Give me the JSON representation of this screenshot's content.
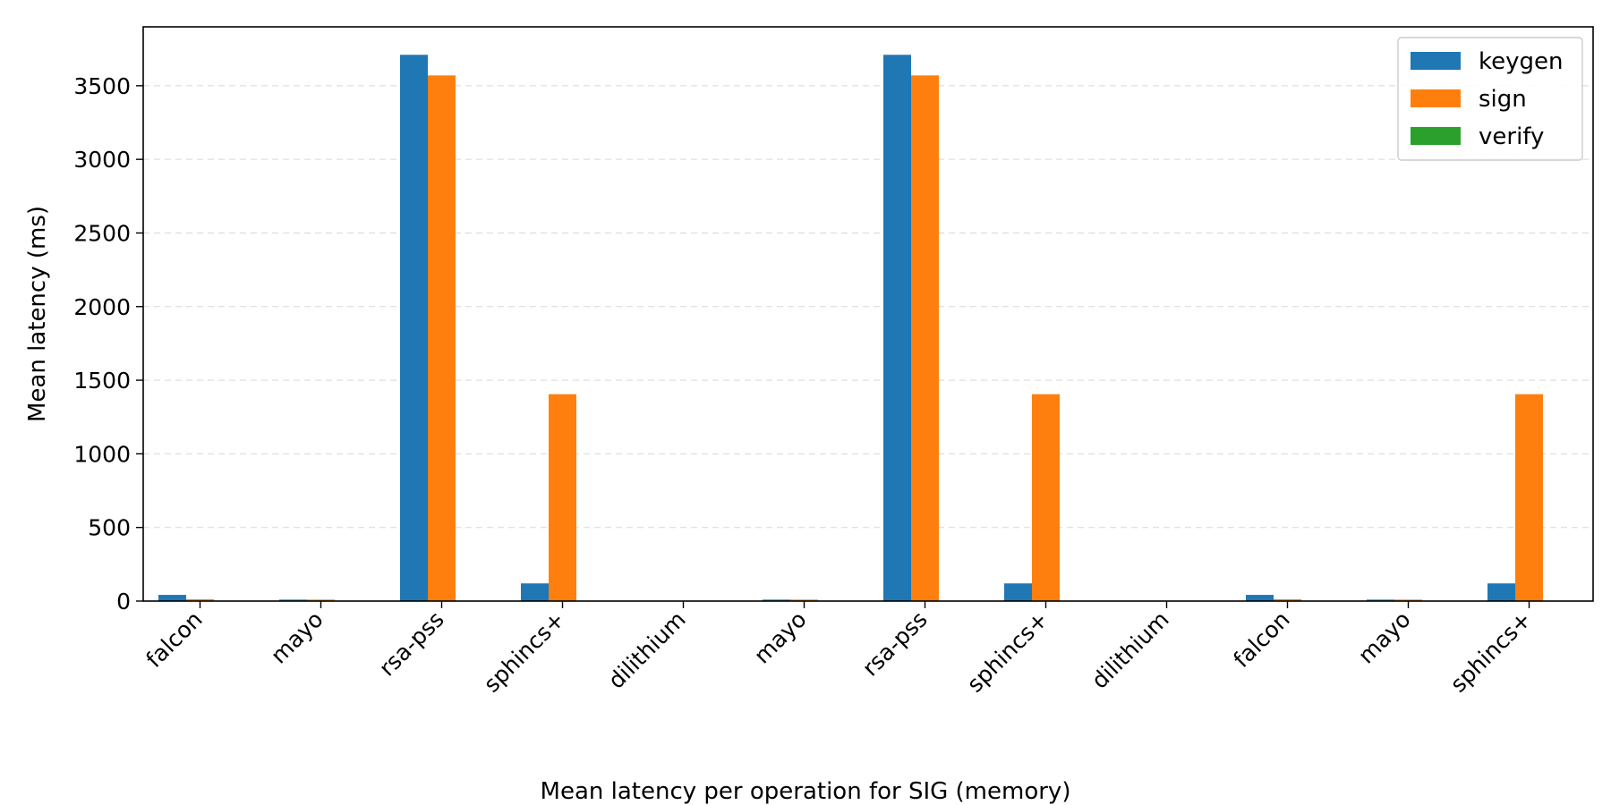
{
  "chart_data": {
    "type": "bar",
    "title": "",
    "xlabel": "Mean latency per operation for SIG (memory)",
    "ylabel": "Mean latency (ms)",
    "ylim": [
      0,
      3900
    ],
    "yticks": [
      0,
      500,
      1000,
      1500,
      2000,
      2500,
      3000,
      3500
    ],
    "grid": "y-dashed",
    "legend_position": "top-right",
    "categories": [
      "falcon",
      "mayo",
      "rsa-pss",
      "sphincs+",
      "dilithium",
      "mayo",
      "rsa-pss",
      "sphincs+",
      "dilithium",
      "falcon",
      "mayo",
      "sphincs+"
    ],
    "series": [
      {
        "name": "keygen",
        "color": "#1f77b4",
        "values": [
          42,
          10,
          3710,
          120,
          1,
          10,
          3710,
          120,
          1,
          42,
          10,
          120
        ]
      },
      {
        "name": "sign",
        "color": "#ff7f0e",
        "values": [
          12,
          10,
          3570,
          1405,
          1,
          10,
          3570,
          1405,
          1,
          12,
          10,
          1405
        ]
      },
      {
        "name": "verify",
        "color": "#2ca02c",
        "values": [
          1,
          2,
          2,
          3,
          1,
          2,
          2,
          3,
          1,
          1,
          2,
          3
        ]
      }
    ]
  }
}
